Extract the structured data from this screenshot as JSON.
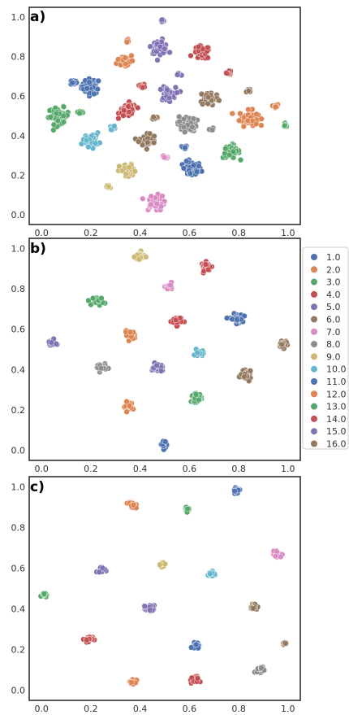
{
  "legend": {
    "entries": [
      "1.0",
      "2.0",
      "3.0",
      "4.0",
      "5.0",
      "6.0",
      "7.0",
      "8.0",
      "9.0",
      "10.0",
      "11.0",
      "12.0",
      "13.0",
      "14.0",
      "15.0",
      "16.0"
    ],
    "colors": [
      "#4c72b0",
      "#dd8452",
      "#55a868",
      "#c44e52",
      "#8172b3",
      "#937860",
      "#da8bc3",
      "#8c8c8c",
      "#ccb974",
      "#64b5cd",
      "#4c72b0",
      "#dd8452",
      "#55a868",
      "#c44e52",
      "#8172b3",
      "#937860"
    ]
  },
  "chart_data": [
    {
      "type": "scatter",
      "panel_label": "a)",
      "xlim": [
        -0.05,
        1.05
      ],
      "ylim": [
        -0.05,
        1.05
      ],
      "x_ticks": [
        "0.0",
        "0.2",
        "0.4",
        "0.6",
        "0.8",
        "1.0"
      ],
      "y_ticks": [
        "0.0",
        "0.2",
        "0.4",
        "0.6",
        "0.8",
        "1.0"
      ],
      "clusters": [
        {
          "class": "1.0",
          "x": 0.2,
          "y": 0.65,
          "spread": 0.045
        },
        {
          "class": "1.0",
          "x": 0.61,
          "y": 0.23,
          "spread": 0.045
        },
        {
          "class": "1.0",
          "x": 0.13,
          "y": 0.67,
          "spread": 0.015
        },
        {
          "class": "1.0",
          "x": 0.58,
          "y": 0.34,
          "spread": 0.012
        },
        {
          "class": "2.0",
          "x": 0.34,
          "y": 0.78,
          "spread": 0.04
        },
        {
          "class": "2.0",
          "x": 0.84,
          "y": 0.49,
          "spread": 0.045
        },
        {
          "class": "2.0",
          "x": 0.35,
          "y": 0.88,
          "spread": 0.012
        },
        {
          "class": "2.0",
          "x": 0.95,
          "y": 0.55,
          "spread": 0.01
        },
        {
          "class": "3.0",
          "x": 0.07,
          "y": 0.5,
          "spread": 0.05
        },
        {
          "class": "3.0",
          "x": 0.77,
          "y": 0.32,
          "spread": 0.04
        },
        {
          "class": "3.0",
          "x": 0.16,
          "y": 0.52,
          "spread": 0.015
        },
        {
          "class": "3.0",
          "x": 0.99,
          "y": 0.45,
          "spread": 0.01
        },
        {
          "class": "4.0",
          "x": 0.65,
          "y": 0.82,
          "spread": 0.04
        },
        {
          "class": "4.0",
          "x": 0.35,
          "y": 0.53,
          "spread": 0.04
        },
        {
          "class": "4.0",
          "x": 0.41,
          "y": 0.65,
          "spread": 0.012
        },
        {
          "class": "4.0",
          "x": 0.76,
          "y": 0.72,
          "spread": 0.012
        },
        {
          "class": "5.0",
          "x": 0.48,
          "y": 0.85,
          "spread": 0.04
        },
        {
          "class": "5.0",
          "x": 0.51,
          "y": 0.61,
          "spread": 0.04
        },
        {
          "class": "5.0",
          "x": 0.49,
          "y": 0.98,
          "spread": 0.01
        },
        {
          "class": "5.0",
          "x": 0.56,
          "y": 0.71,
          "spread": 0.01
        },
        {
          "class": "6.0",
          "x": 0.68,
          "y": 0.59,
          "spread": 0.045
        },
        {
          "class": "6.0",
          "x": 0.43,
          "y": 0.38,
          "spread": 0.04
        },
        {
          "class": "6.0",
          "x": 0.84,
          "y": 0.63,
          "spread": 0.012
        },
        {
          "class": "6.0",
          "x": 0.46,
          "y": 0.49,
          "spread": 0.01
        },
        {
          "class": "7.0",
          "x": 0.46,
          "y": 0.06,
          "spread": 0.045
        },
        {
          "class": "7.0",
          "x": 0.5,
          "y": 0.29,
          "spread": 0.012
        },
        {
          "class": "8.0",
          "x": 0.59,
          "y": 0.46,
          "spread": 0.045
        },
        {
          "class": "8.0",
          "x": 0.69,
          "y": 0.43,
          "spread": 0.01
        },
        {
          "class": "9.0",
          "x": 0.35,
          "y": 0.22,
          "spread": 0.04
        },
        {
          "class": "9.0",
          "x": 0.27,
          "y": 0.14,
          "spread": 0.01
        },
        {
          "class": "10.0",
          "x": 0.2,
          "y": 0.38,
          "spread": 0.04
        },
        {
          "class": "10.0",
          "x": 0.29,
          "y": 0.44,
          "spread": 0.012
        }
      ]
    },
    {
      "type": "scatter",
      "panel_label": "b)",
      "xlim": [
        -0.05,
        1.05
      ],
      "ylim": [
        -0.05,
        1.05
      ],
      "x_ticks": [
        "0.0",
        "0.2",
        "0.4",
        "0.6",
        "0.8",
        "1.0"
      ],
      "y_ticks": [
        "0.0",
        "0.2",
        "0.4",
        "0.6",
        "0.8",
        "1.0"
      ],
      "clusters": [
        {
          "class": "1.0",
          "x": 0.79,
          "y": 0.65,
          "spread": 0.03
        },
        {
          "class": "1.0",
          "x": 0.5,
          "y": 0.03,
          "spread": 0.02
        },
        {
          "class": "2.0",
          "x": 0.36,
          "y": 0.57,
          "spread": 0.025
        },
        {
          "class": "2.0",
          "x": 0.36,
          "y": 0.22,
          "spread": 0.025
        },
        {
          "class": "3.0",
          "x": 0.23,
          "y": 0.74,
          "spread": 0.025
        },
        {
          "class": "3.0",
          "x": 0.63,
          "y": 0.26,
          "spread": 0.025
        },
        {
          "class": "4.0",
          "x": 0.67,
          "y": 0.91,
          "spread": 0.025
        },
        {
          "class": "4.0",
          "x": 0.55,
          "y": 0.64,
          "spread": 0.025
        },
        {
          "class": "5.0",
          "x": 0.47,
          "y": 0.41,
          "spread": 0.025
        },
        {
          "class": "5.0",
          "x": 0.04,
          "y": 0.53,
          "spread": 0.02
        },
        {
          "class": "6.0",
          "x": 0.98,
          "y": 0.53,
          "spread": 0.025
        },
        {
          "class": "6.0",
          "x": 0.83,
          "y": 0.37,
          "spread": 0.025
        },
        {
          "class": "7.0",
          "x": 0.52,
          "y": 0.81,
          "spread": 0.018
        },
        {
          "class": "8.0",
          "x": 0.24,
          "y": 0.41,
          "spread": 0.025
        },
        {
          "class": "9.0",
          "x": 0.4,
          "y": 0.96,
          "spread": 0.025
        },
        {
          "class": "10.0",
          "x": 0.64,
          "y": 0.48,
          "spread": 0.02
        }
      ]
    },
    {
      "type": "scatter",
      "panel_label": "c)",
      "xlim": [
        -0.05,
        1.05
      ],
      "ylim": [
        -0.05,
        1.05
      ],
      "x_ticks": [
        "0.0",
        "0.2",
        "0.4",
        "0.6",
        "0.8",
        "1.0"
      ],
      "y_ticks": [
        "0.0",
        "0.2",
        "0.4",
        "0.6",
        "0.8",
        "1.0"
      ],
      "clusters": [
        {
          "class": "1.0",
          "x": 0.79,
          "y": 0.98,
          "spread": 0.015
        },
        {
          "class": "1.0",
          "x": 0.63,
          "y": 0.22,
          "spread": 0.02
        },
        {
          "class": "2.0",
          "x": 0.37,
          "y": 0.91,
          "spread": 0.018
        },
        {
          "class": "2.0",
          "x": 0.37,
          "y": 0.04,
          "spread": 0.018
        },
        {
          "class": "3.0",
          "x": 0.59,
          "y": 0.89,
          "spread": 0.015
        },
        {
          "class": "3.0",
          "x": 0.01,
          "y": 0.47,
          "spread": 0.012
        },
        {
          "class": "4.0",
          "x": 0.19,
          "y": 0.25,
          "spread": 0.02
        },
        {
          "class": "4.0",
          "x": 0.62,
          "y": 0.05,
          "spread": 0.02
        },
        {
          "class": "5.0",
          "x": 0.24,
          "y": 0.59,
          "spread": 0.02
        },
        {
          "class": "5.0",
          "x": 0.44,
          "y": 0.4,
          "spread": 0.02
        },
        {
          "class": "6.0",
          "x": 0.86,
          "y": 0.41,
          "spread": 0.02
        },
        {
          "class": "6.0",
          "x": 0.99,
          "y": 0.23,
          "spread": 0.01
        },
        {
          "class": "7.0",
          "x": 0.96,
          "y": 0.67,
          "spread": 0.018
        },
        {
          "class": "8.0",
          "x": 0.89,
          "y": 0.1,
          "spread": 0.018
        },
        {
          "class": "9.0",
          "x": 0.49,
          "y": 0.62,
          "spread": 0.015
        },
        {
          "class": "10.0",
          "x": 0.69,
          "y": 0.57,
          "spread": 0.018
        }
      ]
    }
  ]
}
